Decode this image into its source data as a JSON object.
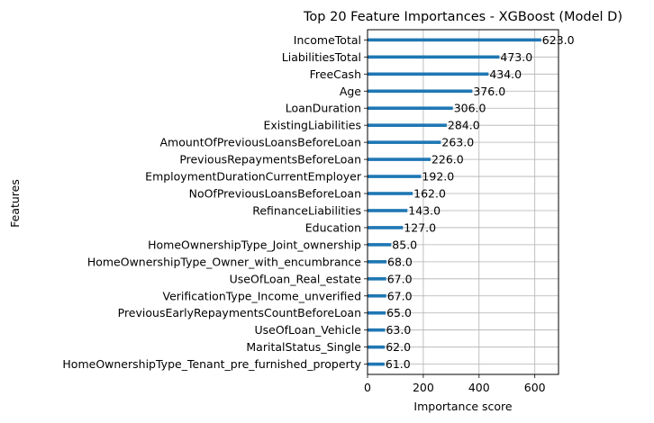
{
  "chart_data": {
    "type": "bar",
    "orientation": "horizontal",
    "title": "Top 20 Feature Importances - XGBoost (Model D)",
    "xlabel": "Importance score",
    "ylabel": "Features",
    "xlim": [
      0,
      685
    ],
    "xticks": [
      0,
      200,
      400,
      600
    ],
    "grid": true,
    "bar_color": "#1f77b4",
    "categories": [
      "IncomeTotal",
      "LiabilitiesTotal",
      "FreeCash",
      "Age",
      "LoanDuration",
      "ExistingLiabilities",
      "AmountOfPreviousLoansBeforeLoan",
      "PreviousRepaymentsBeforeLoan",
      "EmploymentDurationCurrentEmployer",
      "NoOfPreviousLoansBeforeLoan",
      "RefinanceLiabilities",
      "Education",
      "HomeOwnershipType_Joint_ownership",
      "HomeOwnershipType_Owner_with_encumbrance",
      "UseOfLoan_Real_estate",
      "VerificationType_Income_unverified",
      "PreviousEarlyRepaymentsCountBeforeLoan",
      "UseOfLoan_Vehicle",
      "MaritalStatus_Single",
      "HomeOwnershipType_Tenant_pre_furnished_property"
    ],
    "values": [
      623.0,
      473.0,
      434.0,
      376.0,
      306.0,
      284.0,
      263.0,
      226.0,
      192.0,
      162.0,
      143.0,
      127.0,
      85.0,
      68.0,
      67.0,
      67.0,
      65.0,
      63.0,
      62.0,
      61.0
    ],
    "value_labels": [
      "623.0",
      "473.0",
      "434.0",
      "376.0",
      "306.0",
      "284.0",
      "263.0",
      "226.0",
      "192.0",
      "162.0",
      "143.0",
      "127.0",
      "85.0",
      "68.0",
      "67.0",
      "67.0",
      "65.0",
      "63.0",
      "62.0",
      "61.0"
    ]
  }
}
